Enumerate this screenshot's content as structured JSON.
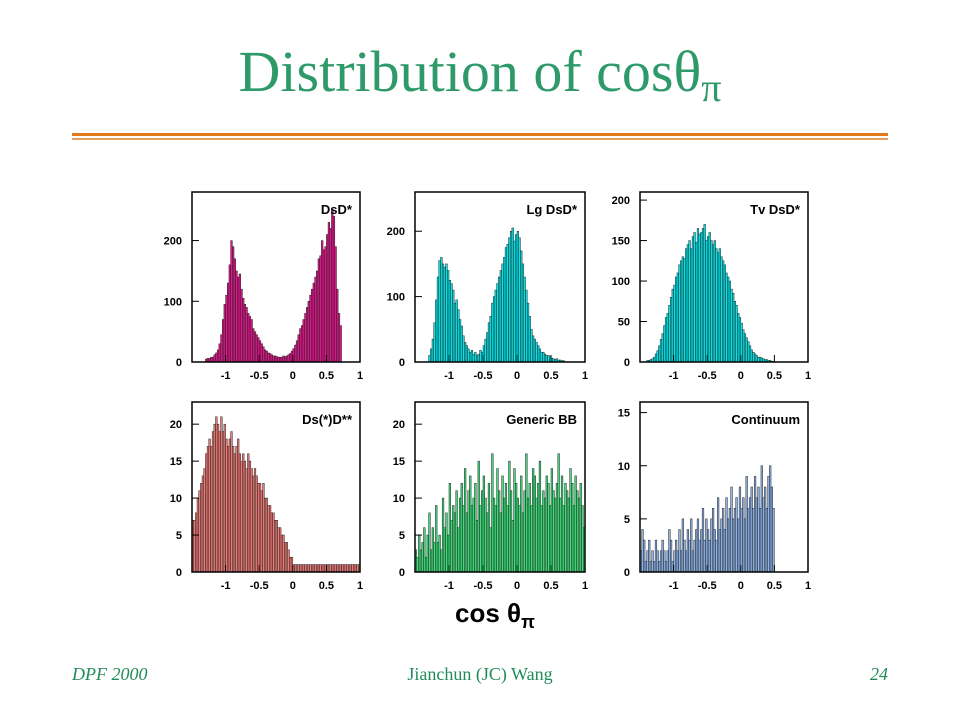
{
  "slide": {
    "title_main": "Distribution of cosθ",
    "title_sub": "π",
    "xlabel_main": "cos θ",
    "xlabel_sub": "π",
    "footer_left": "DPF 2000",
    "footer_center": "Jianchun (JC) Wang",
    "footer_right": "24"
  },
  "colors": {
    "title": "#2e9a6a",
    "rule": "#e07a1a",
    "footer": "#1f8a5a"
  },
  "chart_data": [
    {
      "type": "bar",
      "title": "DsD*",
      "xlabel": "cos θπ",
      "xlim": [
        -1.5,
        1
      ],
      "ylim": [
        0,
        280
      ],
      "yticks": [
        0,
        100,
        200
      ],
      "xticks": [
        -1,
        -0.5,
        0,
        0.5,
        1
      ],
      "fill": "#e4148c",
      "bins": {
        "start": -1.3,
        "width": 0.025
      },
      "values": [
        5,
        6,
        6,
        8,
        8,
        12,
        15,
        20,
        30,
        45,
        70,
        95,
        110,
        130,
        160,
        200,
        190,
        170,
        150,
        140,
        145,
        120,
        105,
        95,
        90,
        80,
        75,
        70,
        55,
        50,
        45,
        40,
        35,
        30,
        25,
        20,
        18,
        15,
        14,
        12,
        10,
        10,
        9,
        8,
        8,
        8,
        10,
        9,
        10,
        12,
        14,
        18,
        22,
        28,
        35,
        45,
        55,
        60,
        70,
        80,
        90,
        100,
        110,
        120,
        130,
        140,
        150,
        170,
        175,
        200,
        185,
        190,
        210,
        230,
        220,
        250,
        240,
        190,
        120,
        80,
        60
      ]
    },
    {
      "type": "bar",
      "title": "Lg DsD*",
      "xlabel": "cos θπ",
      "xlim": [
        -1.5,
        1
      ],
      "ylim": [
        0,
        260
      ],
      "yticks": [
        0,
        100,
        200
      ],
      "xticks": [
        -1,
        -0.5,
        0,
        0.5,
        1
      ],
      "fill": "#00e8ec",
      "bins": {
        "start": -1.3,
        "width": 0.025
      },
      "values": [
        10,
        20,
        35,
        60,
        95,
        130,
        155,
        160,
        150,
        145,
        150,
        140,
        125,
        120,
        110,
        90,
        95,
        80,
        65,
        55,
        40,
        30,
        25,
        20,
        15,
        18,
        12,
        15,
        10,
        12,
        18,
        15,
        25,
        35,
        45,
        60,
        70,
        90,
        100,
        110,
        120,
        130,
        140,
        150,
        160,
        175,
        180,
        190,
        200,
        205,
        185,
        195,
        200,
        190,
        170,
        150,
        130,
        110,
        90,
        70,
        50,
        40,
        35,
        30,
        25,
        20,
        15,
        15,
        12,
        10,
        10,
        8,
        6,
        5,
        4,
        5,
        3,
        3,
        2,
        2
      ]
    },
    {
      "type": "bar",
      "title": "Tv DsD*",
      "xlabel": "cos θπ",
      "xlim": [
        -1.5,
        1
      ],
      "ylim": [
        0,
        210
      ],
      "yticks": [
        0,
        50,
        100,
        150,
        200
      ],
      "xticks": [
        -1,
        -0.5,
        0,
        0.5,
        1
      ],
      "fill": "#00e8ec",
      "bins": {
        "start": -1.4,
        "width": 0.025
      },
      "values": [
        2,
        2,
        3,
        4,
        6,
        10,
        14,
        20,
        28,
        35,
        45,
        55,
        60,
        70,
        80,
        90,
        95,
        105,
        110,
        120,
        125,
        130,
        128,
        140,
        145,
        150,
        140,
        155,
        160,
        148,
        165,
        158,
        160,
        165,
        170,
        150,
        155,
        160,
        150,
        145,
        150,
        140,
        135,
        140,
        130,
        125,
        120,
        110,
        105,
        100,
        90,
        85,
        75,
        70,
        60,
        55,
        48,
        40,
        35,
        30,
        25,
        20,
        15,
        12,
        10,
        8,
        6,
        6,
        5,
        4,
        3,
        3,
        2,
        2,
        1,
        1
      ]
    },
    {
      "type": "bar",
      "title": "Ds(*)D**",
      "xlabel": "cos θπ",
      "xlim": [
        -1.5,
        1
      ],
      "ylim": [
        0,
        23
      ],
      "yticks": [
        0,
        5,
        10,
        15,
        20
      ],
      "xticks": [
        -1,
        -0.5,
        0,
        0.5,
        1
      ],
      "fill": "#f07b76",
      "bins": {
        "start": -1.5,
        "width": 0.025
      },
      "values": [
        7,
        7,
        8,
        10,
        11,
        12,
        13,
        14,
        16,
        17,
        18,
        17,
        19,
        20,
        21,
        20,
        19,
        21,
        19,
        20,
        18,
        17,
        18,
        19,
        17,
        16,
        17,
        18,
        16,
        15,
        16,
        15,
        14,
        16,
        15,
        14,
        13,
        14,
        13,
        12,
        12,
        11,
        12,
        10,
        10,
        9,
        9,
        8,
        8,
        7,
        7,
        6,
        6,
        5,
        5,
        4,
        4,
        3,
        2,
        2,
        1,
        1,
        1,
        1,
        1,
        1,
        1,
        1,
        1,
        1,
        1,
        1,
        1,
        1,
        1,
        1,
        1,
        1,
        1,
        1,
        1,
        1,
        1,
        1,
        1,
        1,
        1,
        1,
        1,
        1,
        1,
        1,
        1,
        1,
        1,
        1,
        1,
        1,
        1,
        1
      ]
    },
    {
      "type": "bar",
      "title": "Generic BB",
      "xlabel": "cos θπ",
      "xlim": [
        -1.5,
        1
      ],
      "ylim": [
        0,
        23
      ],
      "yticks": [
        0,
        5,
        10,
        15,
        20
      ],
      "xticks": [
        -1,
        -0.5,
        0,
        0.5,
        1
      ],
      "fill": "#3de07a",
      "bins": {
        "start": -1.5,
        "width": 0.025
      },
      "values": [
        3,
        2,
        5,
        3,
        4,
        6,
        2,
        5,
        8,
        3,
        6,
        4,
        9,
        4,
        5,
        3,
        10,
        6,
        8,
        5,
        12,
        7,
        9,
        8,
        11,
        6,
        10,
        12,
        9,
        14,
        8,
        11,
        13,
        9,
        10,
        12,
        7,
        15,
        9,
        11,
        13,
        10,
        8,
        12,
        6,
        16,
        10,
        9,
        14,
        11,
        8,
        13,
        10,
        12,
        9,
        15,
        11,
        7,
        14,
        12,
        10,
        9,
        13,
        8,
        11,
        16,
        10,
        12,
        9,
        14,
        13,
        10,
        12,
        15,
        9,
        11,
        10,
        13,
        12,
        9,
        14,
        11,
        10,
        12,
        16,
        10,
        13,
        9,
        12,
        11,
        10,
        14,
        12,
        9,
        13,
        11,
        10,
        12,
        9,
        6
      ]
    },
    {
      "type": "bar",
      "title": "Continuum",
      "xlabel": "cos θπ",
      "xlim": [
        -1.5,
        1
      ],
      "ylim": [
        0,
        16
      ],
      "yticks": [
        0,
        5,
        10,
        15
      ],
      "xticks": [
        -1,
        -0.5,
        0,
        0.5,
        1
      ],
      "fill": "#8eb4ea",
      "bins": {
        "start": -1.5,
        "width": 0.025
      },
      "values": [
        2,
        4,
        3,
        1,
        2,
        3,
        1,
        2,
        1,
        3,
        2,
        1,
        2,
        3,
        2,
        1,
        2,
        4,
        3,
        1,
        2,
        3,
        2,
        4,
        2,
        5,
        3,
        2,
        4,
        3,
        5,
        2,
        3,
        4,
        5,
        3,
        4,
        6,
        3,
        5,
        4,
        3,
        5,
        6,
        4,
        3,
        7,
        4,
        5,
        6,
        4,
        7,
        5,
        6,
        8,
        5,
        6,
        7,
        5,
        8,
        6,
        7,
        5,
        9,
        6,
        7,
        8,
        6,
        9,
        7,
        8,
        6,
        10,
        7,
        8,
        6,
        9,
        10,
        8,
        6
      ]
    }
  ]
}
